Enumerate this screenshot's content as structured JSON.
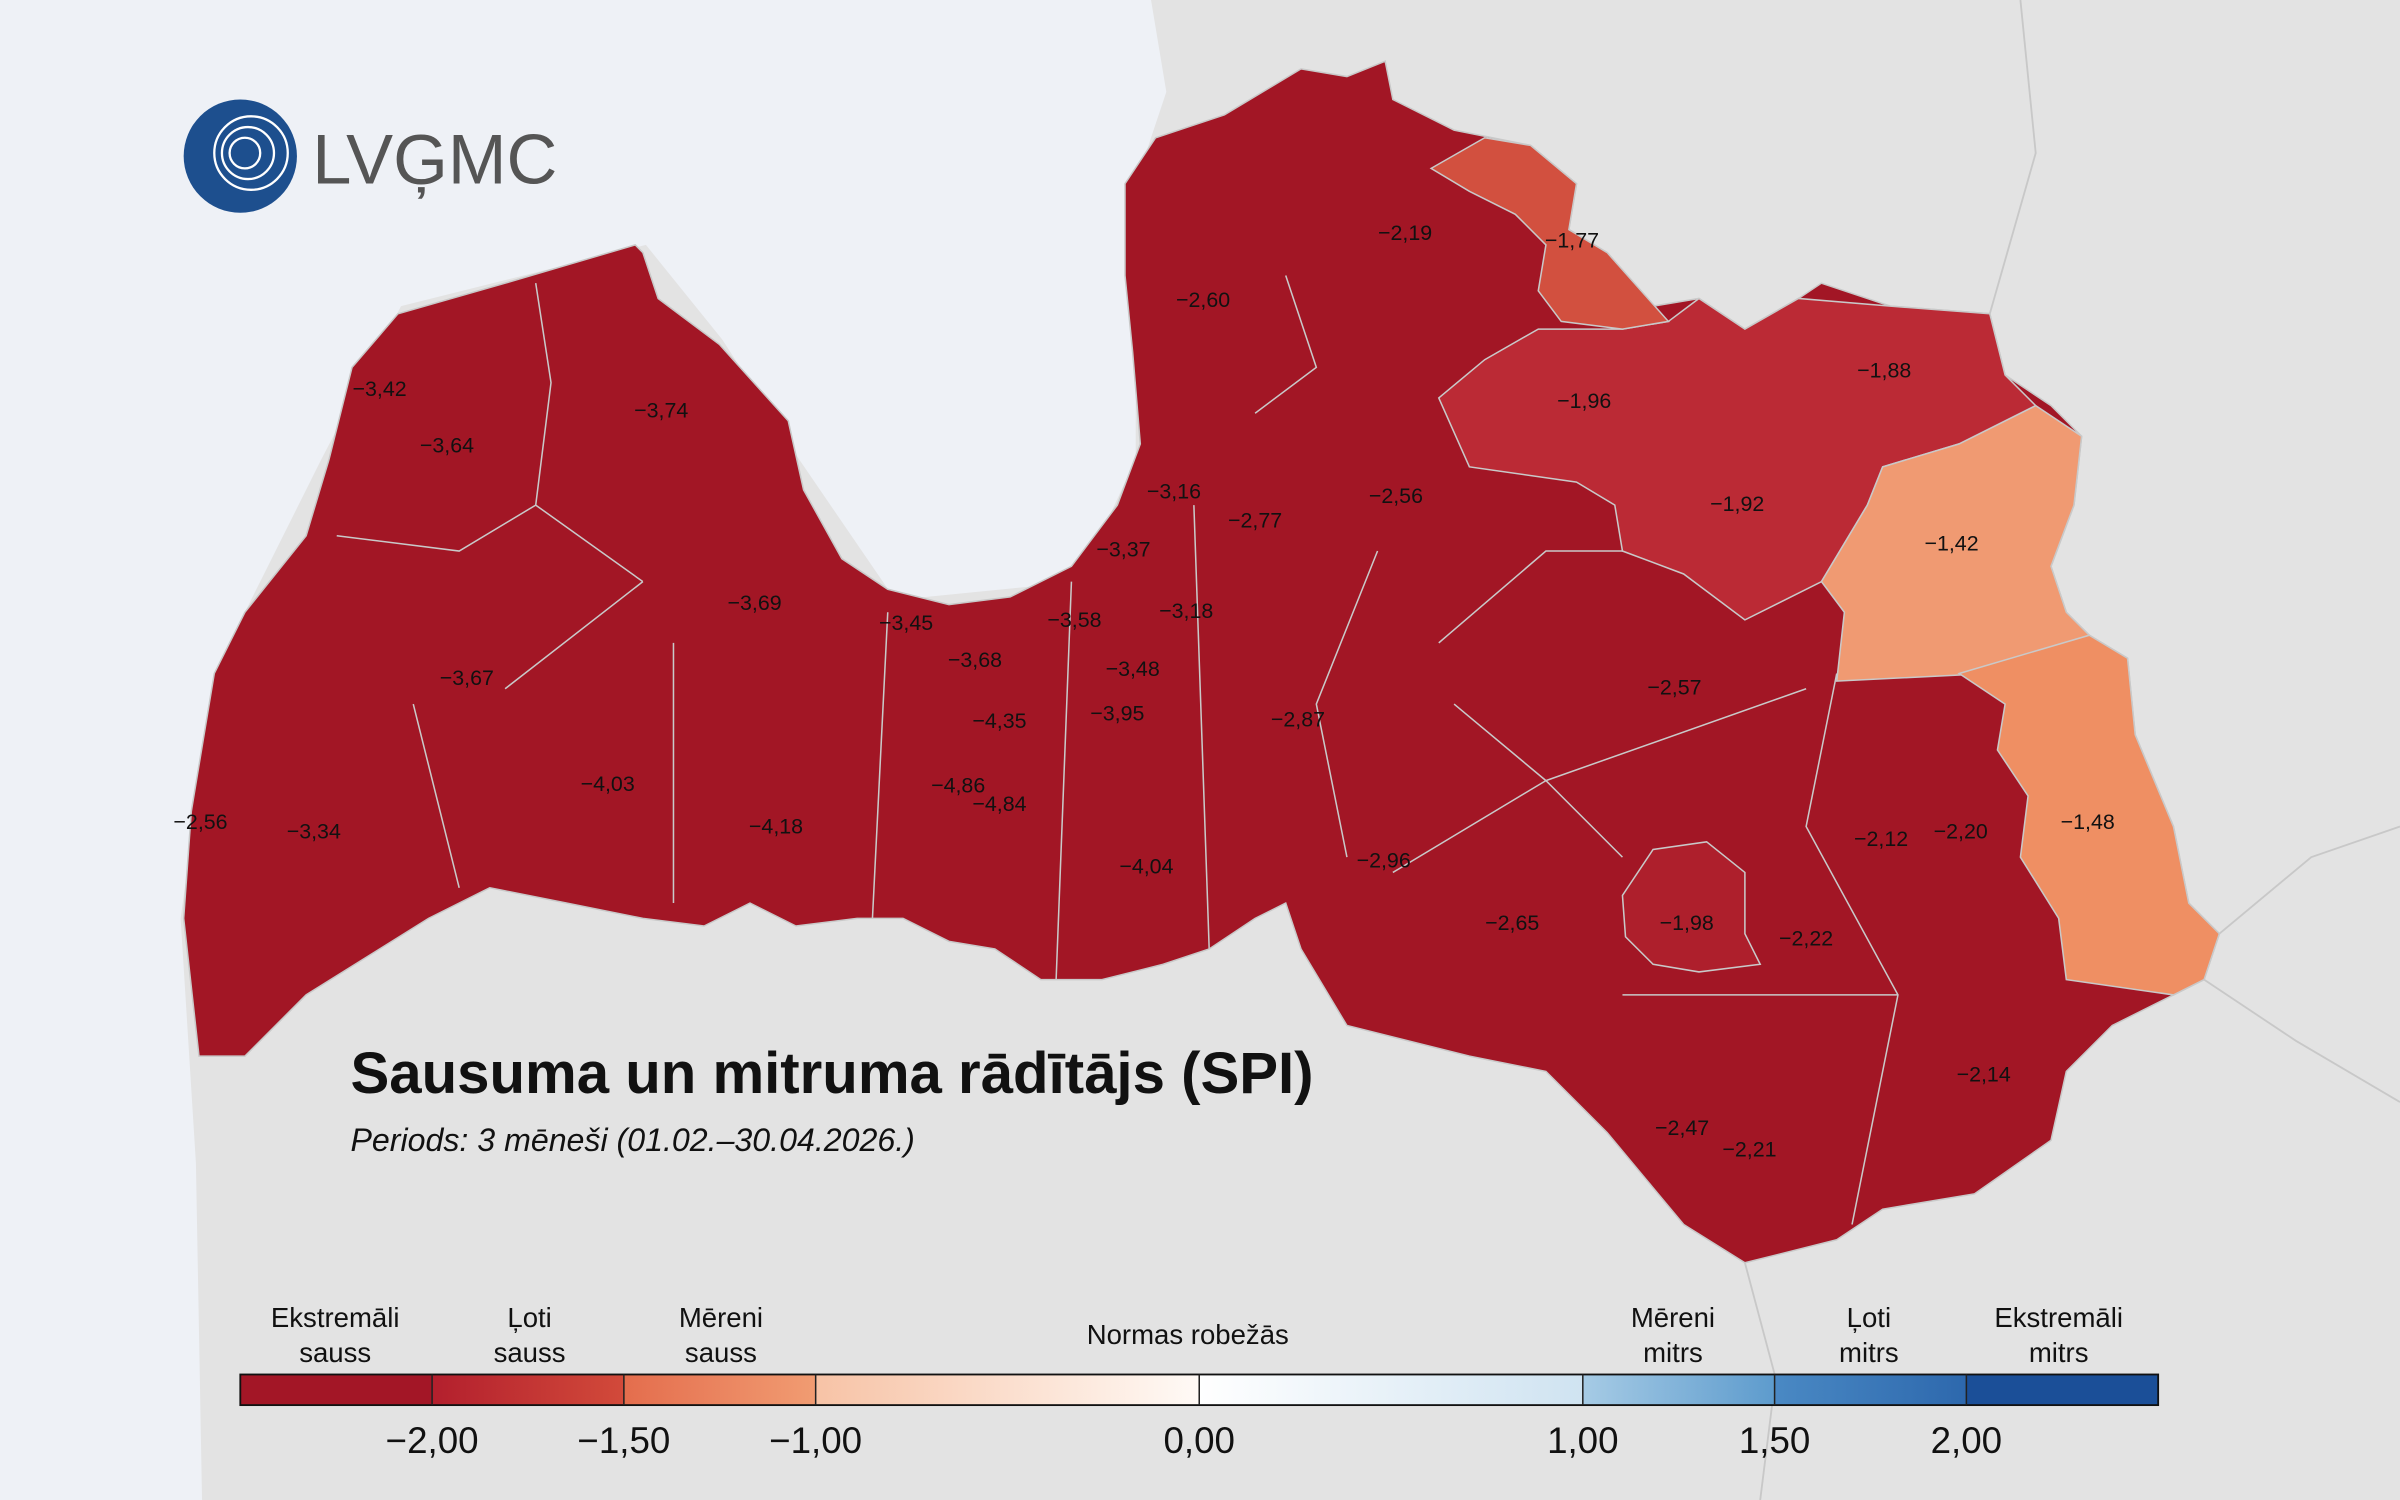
{
  "logo": "LVĢMC",
  "title": "Sausuma un mitruma rādītājs (SPI)",
  "subtitle": "Periods: 3 mēneši (01.02.–30.04.2026.)",
  "regions": [
    "−2,19",
    "−1,77",
    "−2,60",
    "−3,42",
    "−3,74",
    "−1,96",
    "−1,88",
    "−3,64",
    "−2,56",
    "−3,16",
    "−2,77",
    "−1,92",
    "−1,42",
    "−3,37",
    "−3,69",
    "−3,45",
    "−3,58",
    "−3,18",
    "−3,68",
    "−3,48",
    "−3,67",
    "−2,57",
    "−4,35",
    "−3,95",
    "−2,87",
    "−4,03",
    "−4,86",
    "−4,84",
    "−2,56",
    "−3,34",
    "−4,18",
    "−2,12",
    "−2,20",
    "−1,48",
    "−4,04",
    "−2,96",
    "−2,65",
    "−1,98",
    "−2,22",
    "−2,14",
    "−2,47",
    "−2,21"
  ],
  "legend": {
    "categories": [
      [
        "Ekstremāli",
        "sauss"
      ],
      [
        "Ļoti",
        "sauss"
      ],
      [
        "Mēreni",
        "sauss"
      ],
      [
        "Normas robežās"
      ],
      [
        "Mēreni",
        "mitrs"
      ],
      [
        "Ļoti",
        "mitrs"
      ],
      [
        "Ekstremāli",
        "mitrs"
      ]
    ],
    "lim": [
      -2.5,
      2.5
    ],
    "ticks": [
      {
        "value": -2,
        "label": "−2,00"
      },
      {
        "value": -1.5,
        "label": "−1,50"
      },
      {
        "value": -1,
        "label": "−1,00"
      },
      {
        "value": 0,
        "label": "0,00"
      },
      {
        "value": 1,
        "label": "1,00"
      },
      {
        "value": 1.5,
        "label": "1,50"
      },
      {
        "value": 2,
        "label": "2,00"
      }
    ],
    "colors": [
      [
        "#a31626",
        "#a31626"
      ],
      [
        "#b31f2d",
        "#d24a3a"
      ],
      [
        "#e46d4d",
        "#f19c72"
      ],
      [
        "#f7c3a6",
        "#fffaf6"
      ],
      [
        "#ffffff",
        "#cfe3f1"
      ],
      [
        "#a6cbe5",
        "#5d9bcd"
      ],
      [
        "#4a89c4",
        "#2d68ad"
      ],
      [
        "#1b4f98",
        "#1b4f98"
      ]
    ]
  }
}
